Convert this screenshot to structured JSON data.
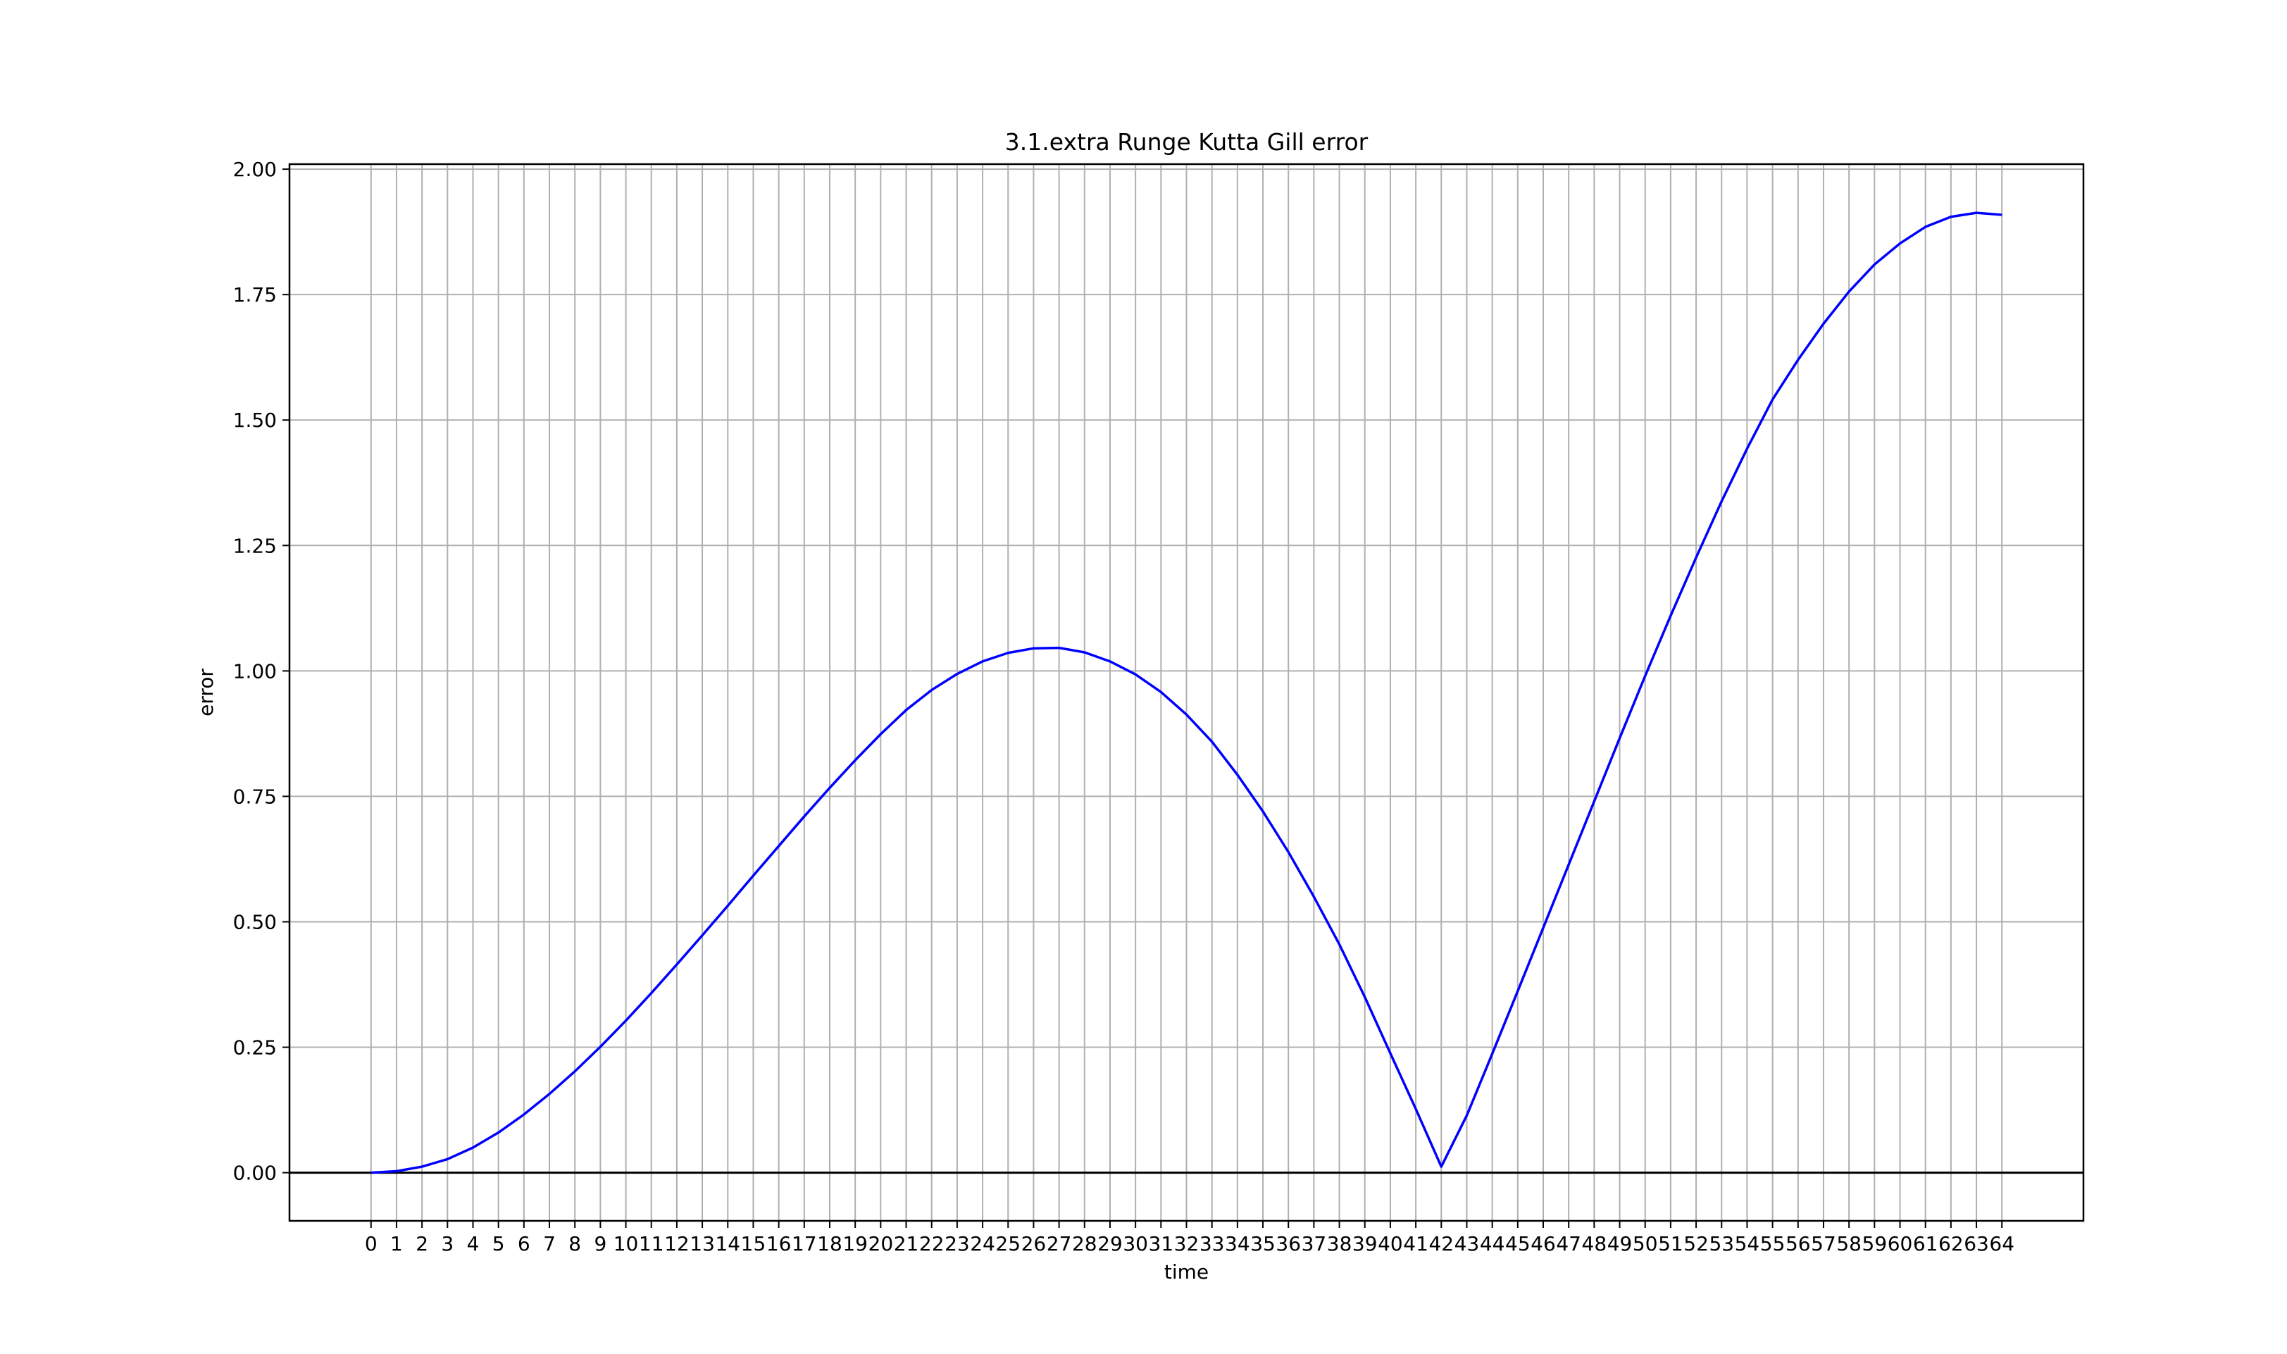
{
  "chart_data": {
    "type": "line",
    "title": "3.1.extra Runge Kutta Gill error",
    "xlabel": "time",
    "ylabel": "error",
    "x": [
      0,
      1,
      2,
      3,
      4,
      5,
      6,
      7,
      8,
      9,
      10,
      11,
      12,
      13,
      14,
      15,
      16,
      17,
      18,
      19,
      20,
      21,
      22,
      23,
      24,
      25,
      26,
      27,
      28,
      29,
      30,
      31,
      32,
      33,
      34,
      35,
      36,
      37,
      38,
      39,
      40,
      41,
      42,
      43,
      44,
      45,
      46,
      47,
      48,
      49,
      50,
      51,
      52,
      53,
      54,
      55,
      56,
      57,
      58,
      59,
      60,
      61,
      62,
      63,
      64
    ],
    "x_ticks": [
      "0",
      "1",
      "2",
      "3",
      "4",
      "5",
      "6",
      "7",
      "8",
      "9",
      "10",
      "11",
      "12",
      "13",
      "14",
      "15",
      "16",
      "17",
      "18",
      "19",
      "20",
      "21",
      "22",
      "23",
      "24",
      "25",
      "26",
      "27",
      "28",
      "29",
      "30",
      "31",
      "32",
      "33",
      "34",
      "35",
      "36",
      "37",
      "38",
      "39",
      "40",
      "41",
      "42",
      "43",
      "44",
      "45",
      "46",
      "47",
      "48",
      "49",
      "50",
      "51",
      "52",
      "53",
      "54",
      "55",
      "56",
      "57",
      "58",
      "59",
      "60",
      "61",
      "62",
      "63",
      "64"
    ],
    "xlim": [
      -3.2,
      67.2
    ],
    "y_ticks": [
      "0.00",
      "0.25",
      "0.50",
      "0.75",
      "1.00",
      "1.25",
      "1.50",
      "1.75",
      "2.00"
    ],
    "ylim": [
      -0.096,
      2.01
    ],
    "grid": true,
    "zero_line": true,
    "line_color": "#0000ff",
    "grid_color": "#b0b0b0",
    "series": [
      {
        "values": [
          0.0,
          0.003,
          0.012,
          0.027,
          0.05,
          0.08,
          0.116,
          0.157,
          0.202,
          0.251,
          0.303,
          0.358,
          0.415,
          0.473,
          0.532,
          0.592,
          0.651,
          0.71,
          0.767,
          0.822,
          0.874,
          0.922,
          0.962,
          0.994,
          1.019,
          1.036,
          1.045,
          1.046,
          1.037,
          1.019,
          0.993,
          0.958,
          0.913,
          0.859,
          0.793,
          0.72,
          0.639,
          0.55,
          0.455,
          0.35,
          0.238,
          0.127,
          0.012,
          0.114,
          0.237,
          0.362,
          0.488,
          0.614,
          0.74,
          0.866,
          0.99,
          1.11,
          1.226,
          1.338,
          1.443,
          1.541,
          1.62,
          1.692,
          1.756,
          1.81,
          1.852,
          1.885,
          1.905,
          1.913,
          1.909
        ]
      }
    ]
  }
}
